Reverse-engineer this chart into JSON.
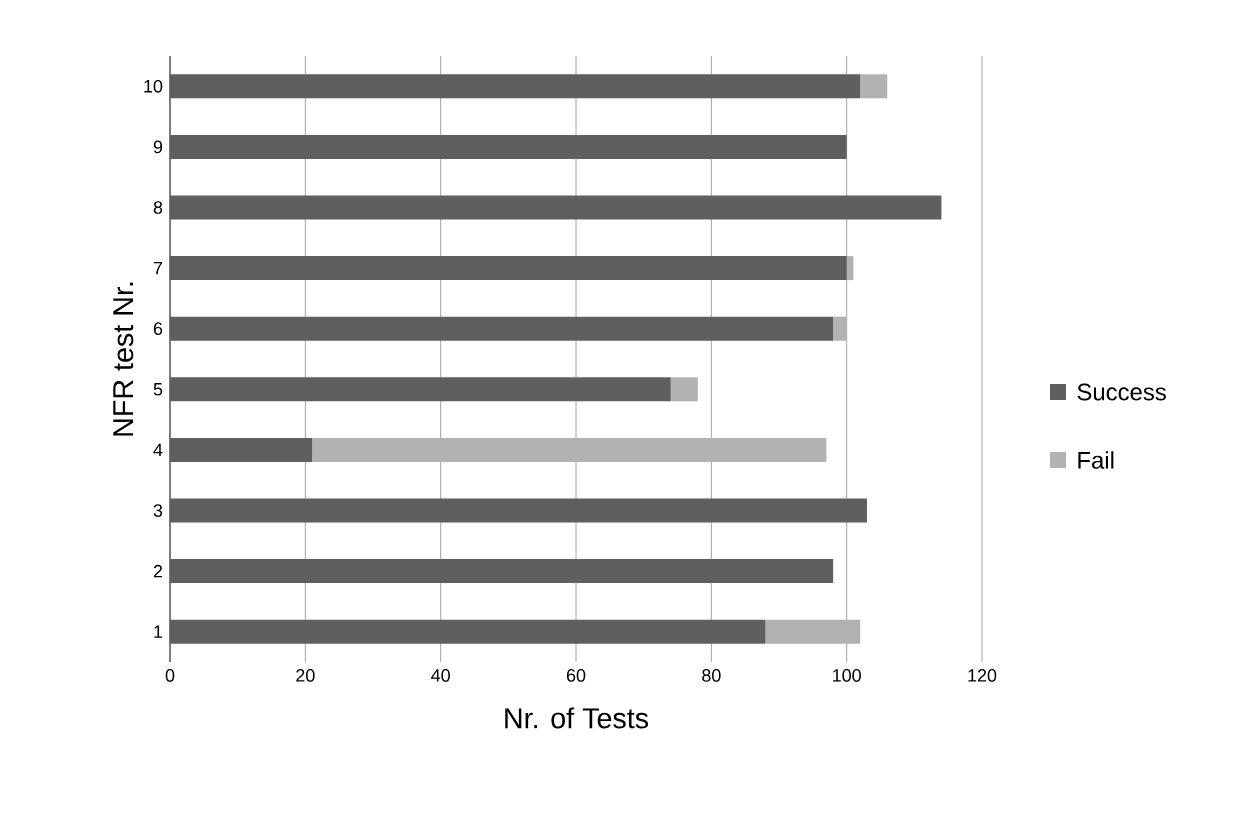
{
  "chart_data": {
    "type": "bar",
    "orientation": "horizontal",
    "stacked": true,
    "xlabel": "Nr. of Tests",
    "ylabel": "NFR test Nr.",
    "categories": [
      "10",
      "9",
      "8",
      "7",
      "6",
      "5",
      "4",
      "3",
      "2",
      "1"
    ],
    "series": [
      {
        "name": "Success",
        "color": "#5f5f5f",
        "values": [
          102,
          100,
          114,
          100,
          98,
          74,
          21,
          103,
          98,
          88
        ]
      },
      {
        "name": "Fail",
        "color": "#b2b2b2",
        "values": [
          4,
          0,
          0,
          1,
          2,
          4,
          76,
          0,
          0,
          14
        ]
      }
    ],
    "xlim": [
      0,
      120
    ],
    "xticks": [
      0,
      20,
      40,
      60,
      80,
      100,
      120
    ],
    "grid": "x",
    "legend": "right"
  }
}
